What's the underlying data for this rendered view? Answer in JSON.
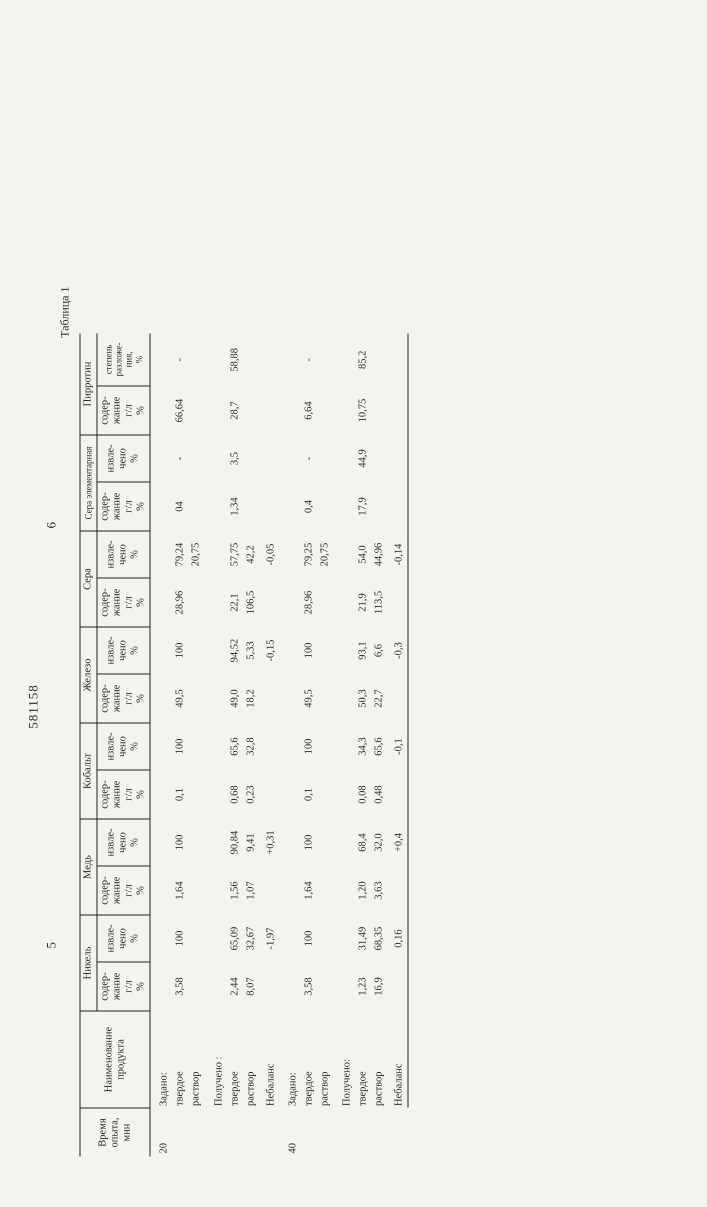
{
  "header_number": "581158",
  "page_left": "5",
  "page_right": "6",
  "table_title": "Таблица 1",
  "groups": [
    "Никель",
    "Медь",
    "Кобальт",
    "Железо",
    "Сера",
    "Сера элементарная",
    "Пирротин"
  ],
  "sub_a": "содер-\nжание\nг/л\n%",
  "sub_b": "извле-\nчено\n%",
  "pyrrotin_b": "степень\nразложе-\nния,\n %",
  "col_time": "Время\nопыта,\nмин",
  "col_prod": "Наименование\nпродукта",
  "rows": [
    {
      "t": "20",
      "label": "Задано:"
    },
    {
      "label": "твердое",
      "cells": [
        "3,58",
        "100",
        "1,64",
        "100",
        "0,1",
        "100",
        "49,5",
        "100",
        "28,96",
        "79,24",
        "04",
        "-",
        "66,64",
        "-"
      ]
    },
    {
      "label": "раствор",
      "cells": [
        "",
        "",
        "",
        "",
        "",
        "",
        "",
        "",
        "",
        "20,75",
        "",
        "",
        "",
        ""
      ]
    },
    {
      "label": "Получено :"
    },
    {
      "label": "твердое",
      "cells": [
        "2,44",
        "65,09",
        "1,56",
        "90,84",
        "0,68",
        "65,6",
        "49,0",
        "94,52",
        "22,1",
        "57,75",
        "1,34",
        "3,5",
        "28,7",
        "58,88"
      ]
    },
    {
      "label": "раствор",
      "cells": [
        "8,07",
        "32,67",
        "1,07",
        "9,41",
        "0,23",
        "32,8",
        "18,2",
        "5,33",
        "106,5",
        "42,2",
        "",
        "",
        "",
        ""
      ]
    },
    {
      "label": "Небаланс",
      "cells": [
        "",
        "-1,97",
        "",
        "+0,31",
        "",
        "",
        "",
        "-0,15",
        "",
        "-0,05",
        "",
        "",
        "",
        ""
      ]
    },
    {
      "t": "40",
      "label": "Задано:"
    },
    {
      "label": "твердое",
      "cells": [
        "3,58",
        "100",
        "1,64",
        "100",
        "0,1",
        "100",
        "49,5",
        "100",
        "28,96",
        "79,25",
        "0,4",
        "-",
        "6,64",
        "-"
      ]
    },
    {
      "label": "раствор",
      "cells": [
        "",
        "",
        "",
        "",
        "",
        "",
        "",
        "",
        "",
        "20,75",
        "",
        "",
        "",
        ""
      ]
    },
    {
      "label": "Получено:"
    },
    {
      "label": "твердое",
      "cells": [
        "1,23",
        "31,49",
        "1,20",
        "68,4",
        "0,08",
        "34,3",
        "50,3",
        "93,1",
        "21,9",
        "54,0",
        "17,9",
        "44,9",
        "10,75",
        "85,2"
      ]
    },
    {
      "label": "раствор",
      "cells": [
        "16,9",
        "68,35",
        "3,63",
        "32,0",
        "0,48",
        "65,6",
        "22,7",
        "6,6",
        "113,5",
        "44,96",
        "",
        "",
        "",
        ""
      ]
    },
    {
      "label": "Небаланс",
      "cells": [
        "",
        "0,16",
        "",
        "+0,4",
        "",
        "-0,1",
        "",
        "-0,3",
        "",
        "-0,14",
        "",
        "",
        "",
        ""
      ]
    }
  ]
}
